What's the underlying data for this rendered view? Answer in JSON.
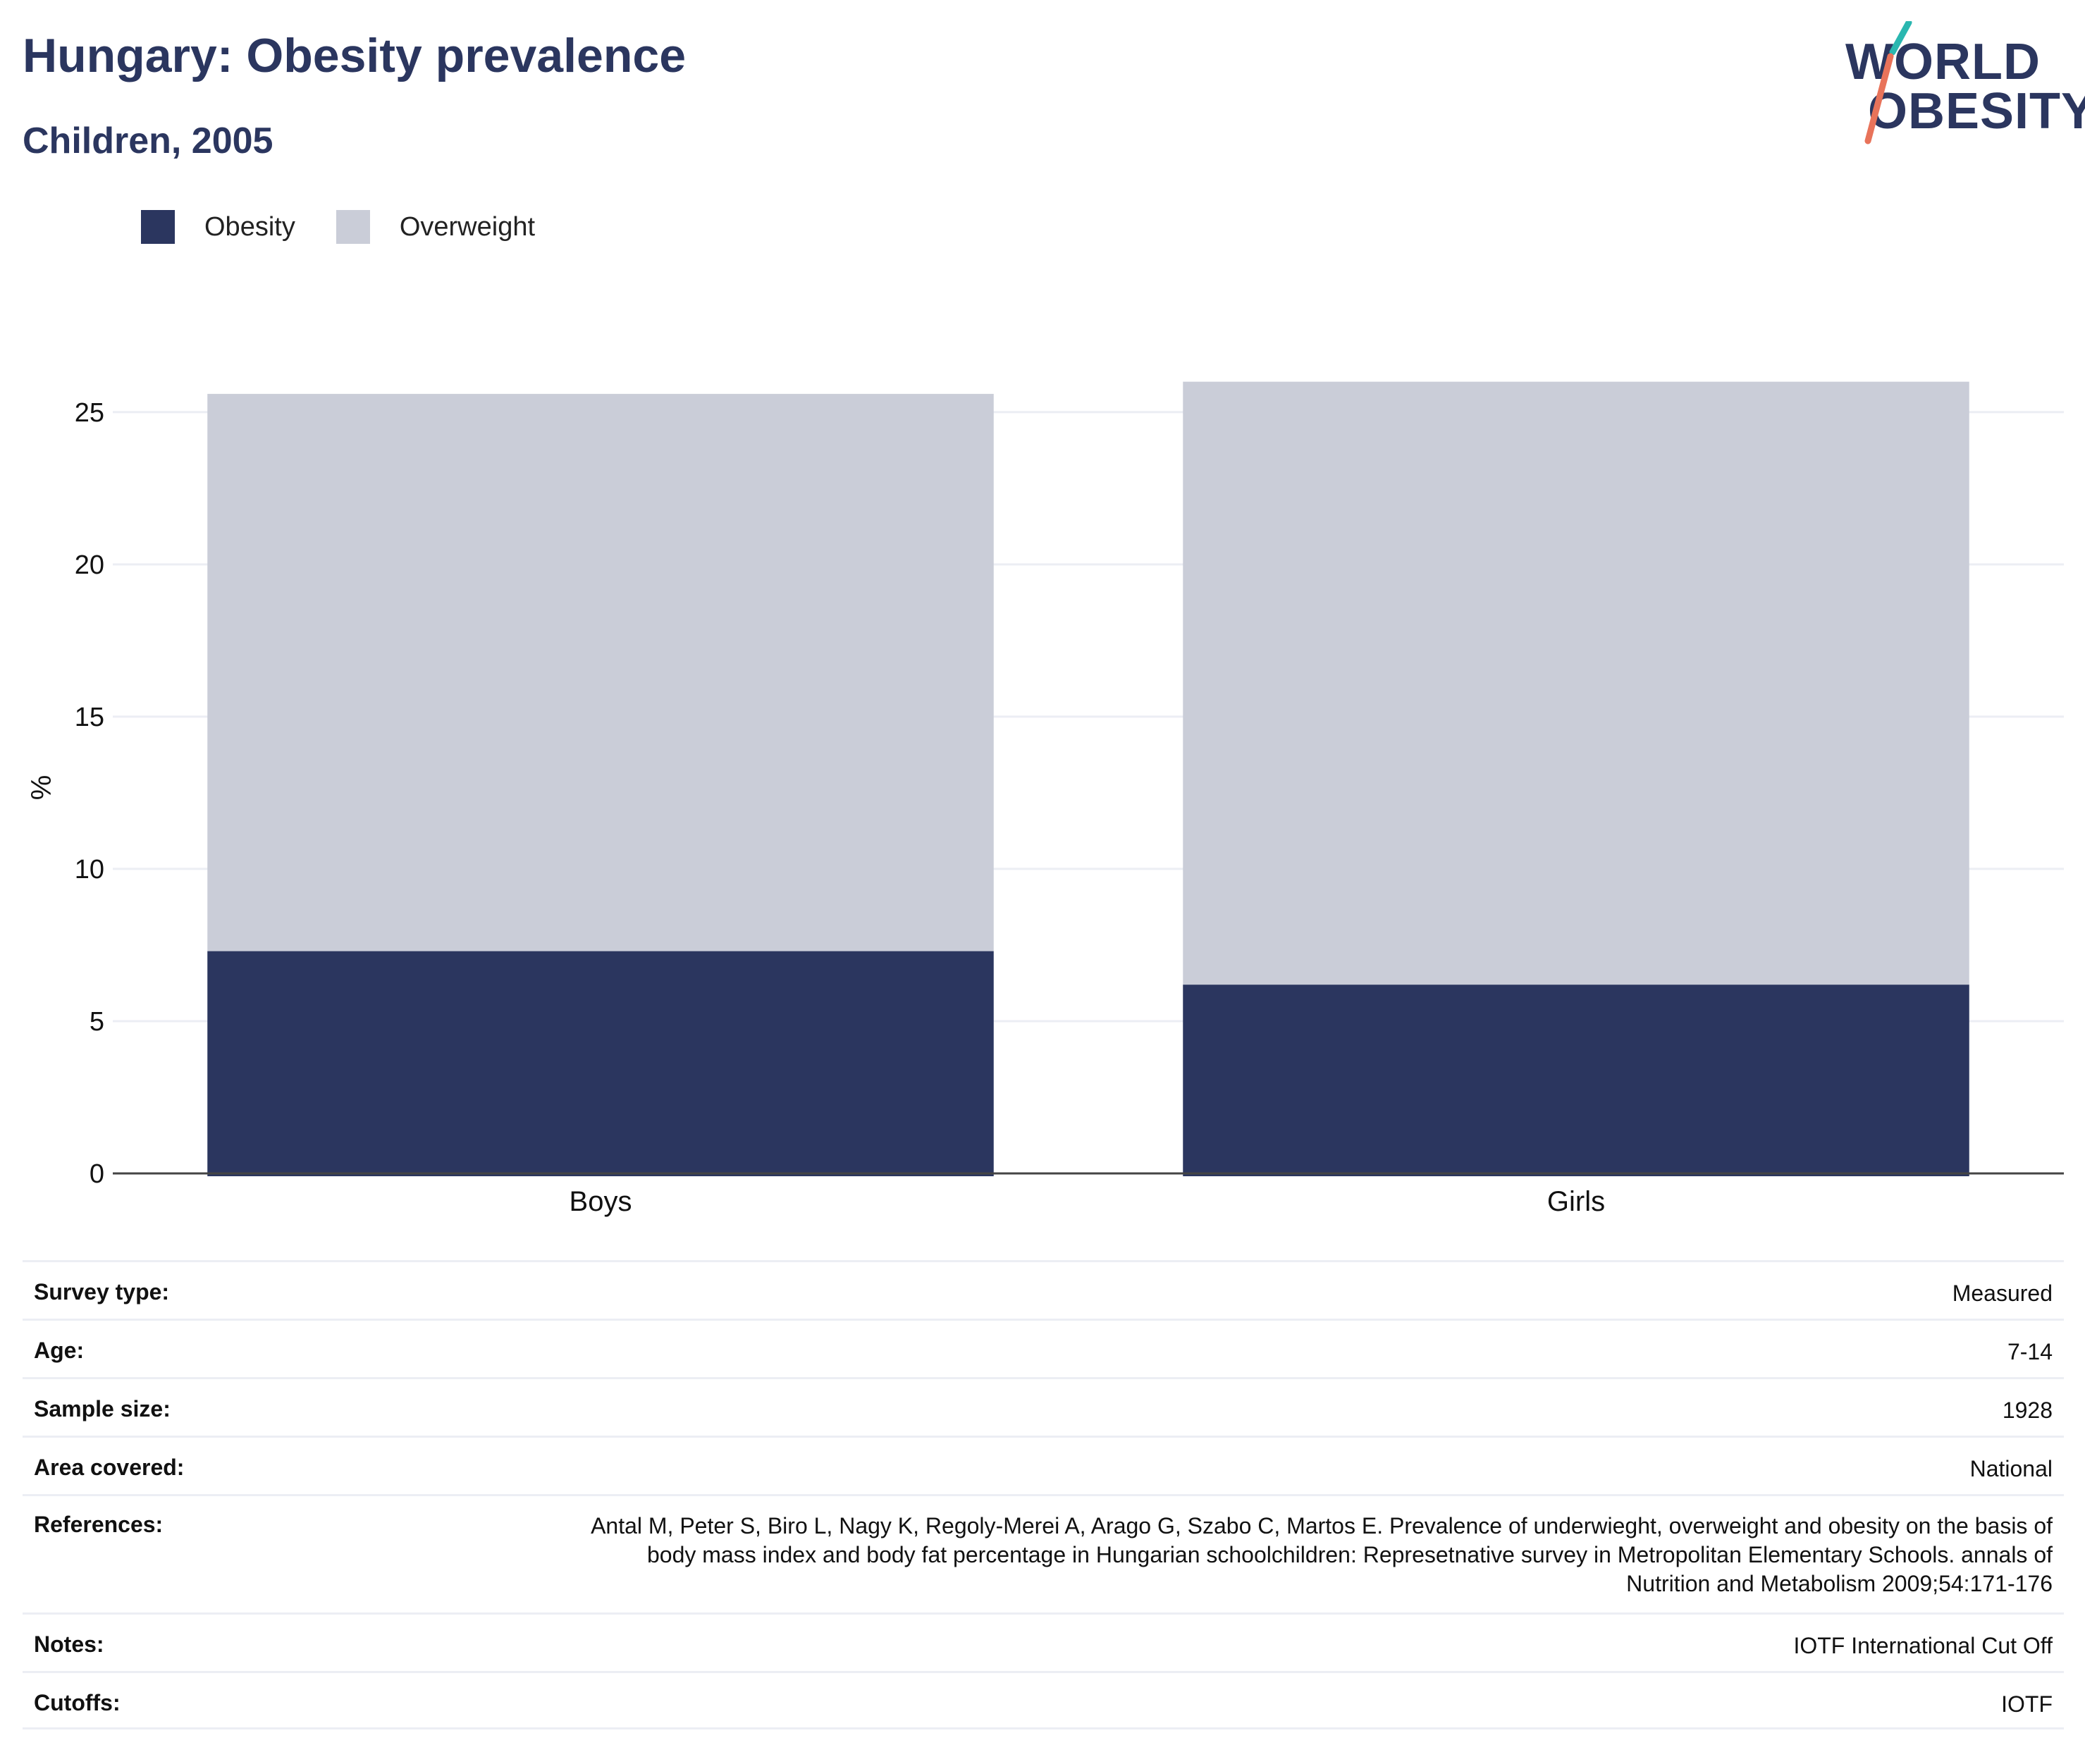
{
  "header": {
    "title": "Hungary: Obesity prevalence",
    "subtitle": "Children, 2005"
  },
  "logo": {
    "line1": "WORLD",
    "line2": "OBESITY",
    "accent_colors": [
      "#2ab7b0",
      "#e8735a"
    ]
  },
  "legend": {
    "items": [
      {
        "label": "Obesity",
        "color": "#2b365f"
      },
      {
        "label": "Overweight",
        "color": "#cacdd8"
      }
    ]
  },
  "chart_data": {
    "type": "bar",
    "stacked": true,
    "categories": [
      "Boys",
      "Girls"
    ],
    "series": [
      {
        "name": "Obesity",
        "values": [
          7.3,
          6.2
        ],
        "color": "#2b365f"
      },
      {
        "name": "Overweight",
        "values": [
          18.3,
          19.8
        ],
        "color": "#cacdd8"
      }
    ],
    "title": "Hungary: Obesity prevalence",
    "subtitle": "Children, 2005",
    "xlabel": "",
    "ylabel": "%",
    "ylim": [
      0,
      26.5
    ],
    "yticks": [
      0,
      5,
      10,
      15,
      20,
      25
    ],
    "grid": true,
    "legend_position": "top-left"
  },
  "info": {
    "rows": [
      {
        "label": "Survey type:",
        "value": "Measured"
      },
      {
        "label": "Age:",
        "value": "7-14"
      },
      {
        "label": "Sample size:",
        "value": "1928"
      },
      {
        "label": "Area covered:",
        "value": "National"
      },
      {
        "label": "References:",
        "value": "Antal M, Peter S, Biro L, Nagy K, Regoly-Merei A, Arago G, Szabo C, Martos E. Prevalence of underwieght, overweight and obesity on the basis of body mass index and body fat percentage in Hungarian schoolchildren: Represetnative survey in Metropolitan Elementary Schools. annals of Nutrition and Metabolism 2009;54:171-176"
      },
      {
        "label": "Notes:",
        "value": "IOTF International Cut Off"
      },
      {
        "label": "Cutoffs:",
        "value": "IOTF"
      }
    ]
  }
}
